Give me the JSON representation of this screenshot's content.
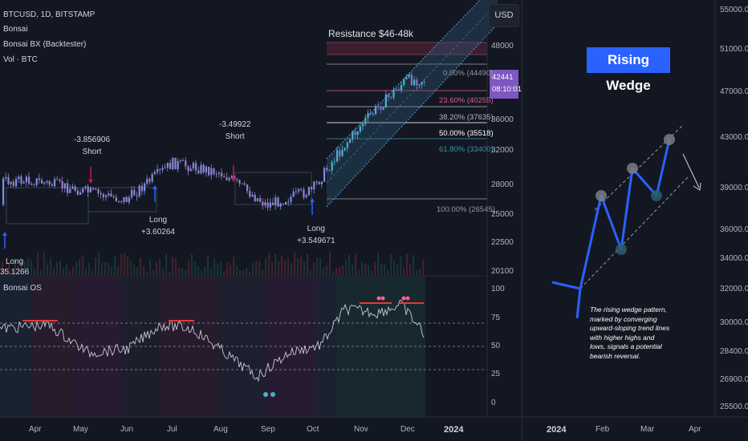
{
  "left_chart": {
    "symbol_line": "BTCUSD, 1D, BITSTAMP",
    "indicators": [
      "Bonsai",
      "Bonsai BX (Backtester)",
      "Vol · BTC"
    ],
    "currency_button": "USD",
    "price_badge": {
      "price": "42441",
      "time": "08:10:01"
    },
    "resistance_label": "Resistance $46-48k",
    "price_axis": [
      "48000",
      "42000",
      "36000",
      "32000",
      "28000",
      "25000",
      "22500",
      "20100"
    ],
    "fib_levels": [
      {
        "label": "0.00% (44490)",
        "color": "#9598a1"
      },
      {
        "label": "23.60% (40255)",
        "color": "#d35f8c"
      },
      {
        "label": "38.20% (37635)",
        "color": "#9598a1"
      },
      {
        "label": "50.00% (35518)",
        "color": "#ffffff"
      },
      {
        "label": "61.80% (33400)",
        "color": "#3e8ea8"
      },
      {
        "label": "100.00% (26545)",
        "color": "#9598a1"
      }
    ],
    "signals": [
      {
        "line1": "Long",
        "line2": "35.1266"
      },
      {
        "line1": "-3.856906",
        "line2": "Short"
      },
      {
        "line1": "Long",
        "line2": "+3.60264"
      },
      {
        "line1": "-3.49922",
        "line2": "Short"
      },
      {
        "line1": "Long",
        "line2": "+3.549671"
      }
    ],
    "oscillator": {
      "title": "Bonsai OS",
      "axis": [
        "100",
        "75",
        "50",
        "25",
        "0"
      ]
    },
    "time_axis": [
      "Apr",
      "May",
      "Jun",
      "Jul",
      "Aug",
      "Sep",
      "Oct",
      "Nov",
      "Dec",
      "2024"
    ]
  },
  "right_chart": {
    "title": "Rising Wedge",
    "description": "The rising wedge pattern, marked by converging upward-sloping trend lines with higher highs and lows, signals a potential bearish reversal.",
    "price_axis": [
      "55000.0",
      "51000.0",
      "47000.0",
      "43000.0",
      "39000.0",
      "36000.0",
      "34000.0",
      "32000.0",
      "30000.0",
      "28400.0",
      "26900.0",
      "25500.0"
    ],
    "time_axis": [
      "2024",
      "Feb",
      "Mar",
      "Apr"
    ]
  },
  "chart_data": [
    {
      "type": "candlestick",
      "title": "BTCUSD, 1D, BITSTAMP",
      "x_range": [
        "Apr",
        "Dec"
      ],
      "y_axis_ticks": [
        20100,
        22500,
        25000,
        28000,
        32000,
        36000,
        42000,
        48000
      ],
      "close_approx": [
        {
          "month": "Apr",
          "value": 28500
        },
        {
          "month": "May",
          "value": 27500
        },
        {
          "month": "Jun",
          "value": 26500
        },
        {
          "month": "Jul",
          "value": 30500
        },
        {
          "month": "Aug",
          "value": 29500
        },
        {
          "month": "Sep",
          "value": 26000
        },
        {
          "month": "Oct",
          "value": 27500
        },
        {
          "month": "Nov",
          "value": 35000
        },
        {
          "month": "Dec",
          "value": 42441
        }
      ],
      "fibonacci": [
        {
          "level": "0.00%",
          "price": 44490
        },
        {
          "level": "23.60%",
          "price": 40255
        },
        {
          "level": "38.20%",
          "price": 37635
        },
        {
          "level": "50.00%",
          "price": 35518
        },
        {
          "level": "61.80%",
          "price": 33400
        },
        {
          "level": "100.00%",
          "price": 26545
        }
      ],
      "resistance": "Resistance $46-48k"
    },
    {
      "type": "line",
      "title": "Bonsai OS",
      "y_range": [
        0,
        100
      ],
      "y_axis_ticks": [
        0,
        25,
        50,
        75,
        100
      ]
    },
    {
      "type": "line",
      "title": "Rising Wedge",
      "y_axis_ticks": [
        25500,
        26900,
        28400,
        30000,
        32000,
        34000,
        36000,
        39000,
        43000,
        47000,
        51000,
        55000
      ],
      "x_axis_ticks": [
        "2024",
        "Feb",
        "Mar",
        "Apr"
      ]
    }
  ]
}
